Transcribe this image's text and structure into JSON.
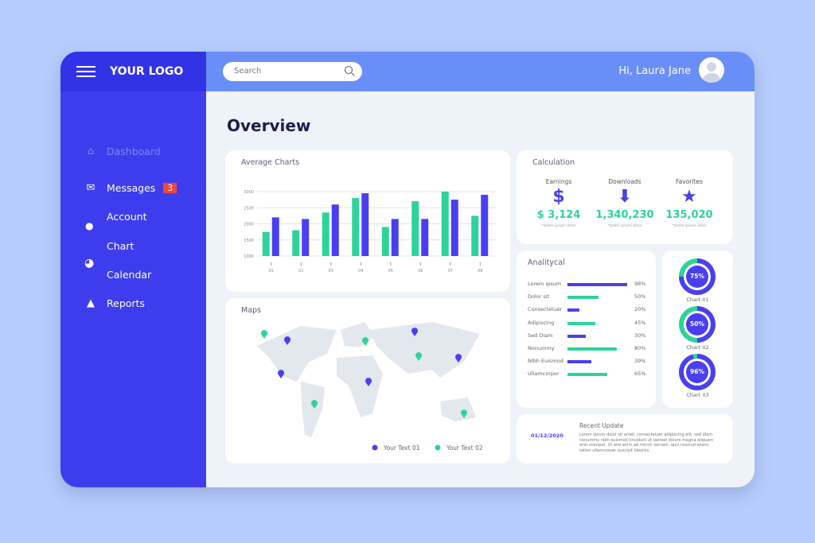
{
  "header": {
    "logo": "YOUR LOGO",
    "search_placeholder": "Search",
    "greeting": "Hi, Laura Jane"
  },
  "sidebar": {
    "items": [
      {
        "label": "Dashboard",
        "icon": "home-icon",
        "active": true
      },
      {
        "label": "Messages",
        "icon": "mail-icon",
        "badge": "3"
      },
      {
        "label": "Account",
        "icon": "user-icon"
      },
      {
        "label": "Chart",
        "icon": "pie-chart-icon"
      },
      {
        "label": "Calendar",
        "icon": "calendar-icon"
      },
      {
        "label": "Reports",
        "icon": "warning-icon"
      }
    ]
  },
  "page_title": "Overview",
  "chart_data": {
    "type": "bar",
    "title": "Average Charts",
    "categories": [
      "01",
      "02",
      "03",
      "04",
      "05",
      "06",
      "07",
      "08"
    ],
    "series": [
      {
        "color": "#2ed39a",
        "values": [
          1750,
          1800,
          2350,
          2800,
          1900,
          2700,
          3000,
          2250
        ]
      },
      {
        "color": "#4a3ff0",
        "values": [
          2200,
          2150,
          2600,
          2950,
          2150,
          2150,
          2750,
          2900
        ]
      }
    ],
    "yticks": [
      1000,
      1500,
      2000,
      2500,
      3000
    ],
    "ylim": [
      1000,
      3000
    ],
    "grid": true
  },
  "calculation": {
    "title": "Calculation",
    "items": [
      {
        "label": "Earnings",
        "icon": "dollar-icon",
        "value": "$ 3,124",
        "note": "*lorem ipsum dolor"
      },
      {
        "label": "Downloads",
        "icon": "download-arrow-icon",
        "value": "1,340,230",
        "note": "*lorem ipsum dolor"
      },
      {
        "label": "Favorites",
        "icon": "star-icon",
        "value": "135,020",
        "note": "*lorem ipsum dolor"
      }
    ]
  },
  "analytical": {
    "title": "Analitycal",
    "rows": [
      {
        "label": "Lorem ipsum",
        "value": 98,
        "text": "98%",
        "color": "#4a3ff0"
      },
      {
        "label": "Dolor sit",
        "value": 50,
        "text": "50%",
        "color": "#2ed39a"
      },
      {
        "label": "Consectetuer",
        "value": 20,
        "text": "20%",
        "color": "#4a3ff0"
      },
      {
        "label": "Adipiscing",
        "value": 45,
        "text": "45%",
        "color": "#2ed39a"
      },
      {
        "label": "Sed Diam",
        "value": 30,
        "text": "30%",
        "color": "#4a3ff0"
      },
      {
        "label": "Nonummy",
        "value": 80,
        "text": "80%",
        "color": "#2ed39a"
      },
      {
        "label": "Nibh Euismod",
        "value": 39,
        "text": "39%",
        "color": "#4a3ff0"
      },
      {
        "label": "Ullamcorper",
        "value": 65,
        "text": "65%",
        "color": "#2ed39a"
      }
    ]
  },
  "donuts": [
    {
      "label": "Chart 01",
      "value": 75,
      "text": "75%"
    },
    {
      "label": "Chart 02",
      "value": 50,
      "text": "50%"
    },
    {
      "label": "Chart 03",
      "value": 96,
      "text": "96%"
    }
  ],
  "maps": {
    "title": "Maps",
    "legend": [
      {
        "label": "Your Text 01",
        "color": "#4a3ff0"
      },
      {
        "label": "Your Text 02",
        "color": "#2ed39a"
      }
    ]
  },
  "recent_update": {
    "title": "Recent Update",
    "date": "01/12/2020",
    "text": "Lorem ipsum dolor sit amet, consectetuer adipiscing elit, sed diam nonummy nibh euismod tincidunt ut laoreet dolore magna aliquam erat volutpat. Ut wisi enim ad minim veniam, quis nostrud exerci tation ullamcorper suscipit lobortis."
  }
}
